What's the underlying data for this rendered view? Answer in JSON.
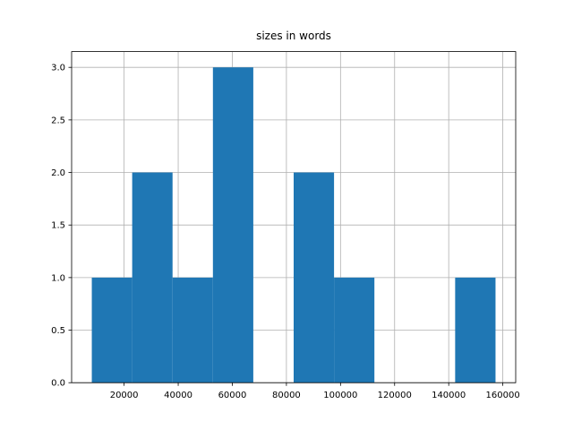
{
  "chart_data": {
    "type": "histogram",
    "title": "sizes in words",
    "bins": [
      8060,
      22984,
      37908,
      52832,
      67756,
      82680,
      97604,
      112528,
      127452,
      142376,
      157300
    ],
    "values": [
      1,
      2,
      1,
      3,
      0,
      2,
      1,
      0,
      0,
      1
    ],
    "color": "#1f77b4",
    "xlim": [
      598,
      164762
    ],
    "xticks": [
      20000,
      40000,
      60000,
      80000,
      100000,
      120000,
      140000,
      160000
    ],
    "ylim": [
      0,
      3.15
    ],
    "yticks": [
      {
        "value": 0,
        "label": "0.0"
      },
      {
        "value": 0.5,
        "label": "0.5"
      },
      {
        "value": 1,
        "label": "1.0"
      },
      {
        "value": 1.5,
        "label": "1.5"
      },
      {
        "value": 2,
        "label": "2.0"
      },
      {
        "value": 2.5,
        "label": "2.5"
      },
      {
        "value": 3,
        "label": "3.0"
      }
    ],
    "grid": true
  }
}
